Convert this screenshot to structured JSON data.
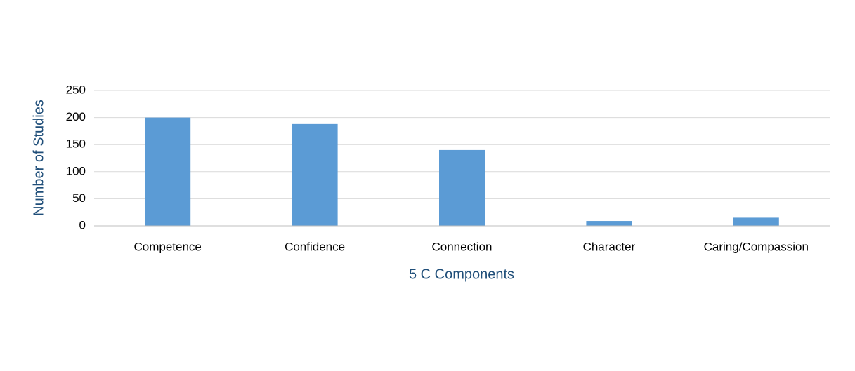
{
  "chart_data": {
    "type": "bar",
    "categories": [
      "Competence",
      "Confidence",
      "Connection",
      "Character",
      "Caring/Compassion"
    ],
    "values": [
      200,
      188,
      140,
      9,
      15
    ],
    "color": "#5b9bd5",
    "xlabel": "5 C Components",
    "ylabel": "Number of Studies",
    "ylim": [
      0,
      250
    ],
    "yticks": [
      0,
      50,
      100,
      150,
      200,
      250
    ],
    "grid": true
  }
}
